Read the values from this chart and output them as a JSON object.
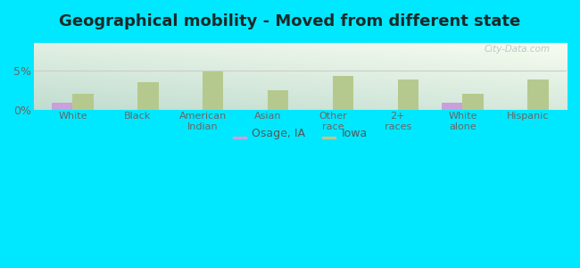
{
  "title": "Geographical mobility - Moved from different state",
  "categories": [
    "White",
    "Black",
    "American\nIndian",
    "Asian",
    "Other\nrace",
    "2+\nraces",
    "White\nalone",
    "Hispanic"
  ],
  "osage_values": [
    0.9,
    0.0,
    0.0,
    0.0,
    0.0,
    0.0,
    0.9,
    0.0
  ],
  "iowa_values": [
    2.0,
    3.5,
    4.8,
    2.5,
    4.3,
    3.8,
    2.0,
    3.8
  ],
  "osage_color": "#c9a0dc",
  "iowa_color": "#b5c98e",
  "ylim": [
    0,
    8.5
  ],
  "yticks": [
    0,
    5
  ],
  "ytick_labels": [
    "0%",
    "5%"
  ],
  "background_outer": "#00e8ff",
  "bg_topleft": "#c8e8d8",
  "bg_topright": "#f5faf0",
  "bg_bottomleft": "#b8e0d0",
  "bg_bottomright": "#e8f5ea",
  "title_fontsize": 13,
  "title_color": "#1a2a2a",
  "legend_osage": "Osage, IA",
  "legend_iowa": "Iowa",
  "watermark": "City-Data.com",
  "tick_color": "#666666",
  "grid_color": "#cccccc"
}
